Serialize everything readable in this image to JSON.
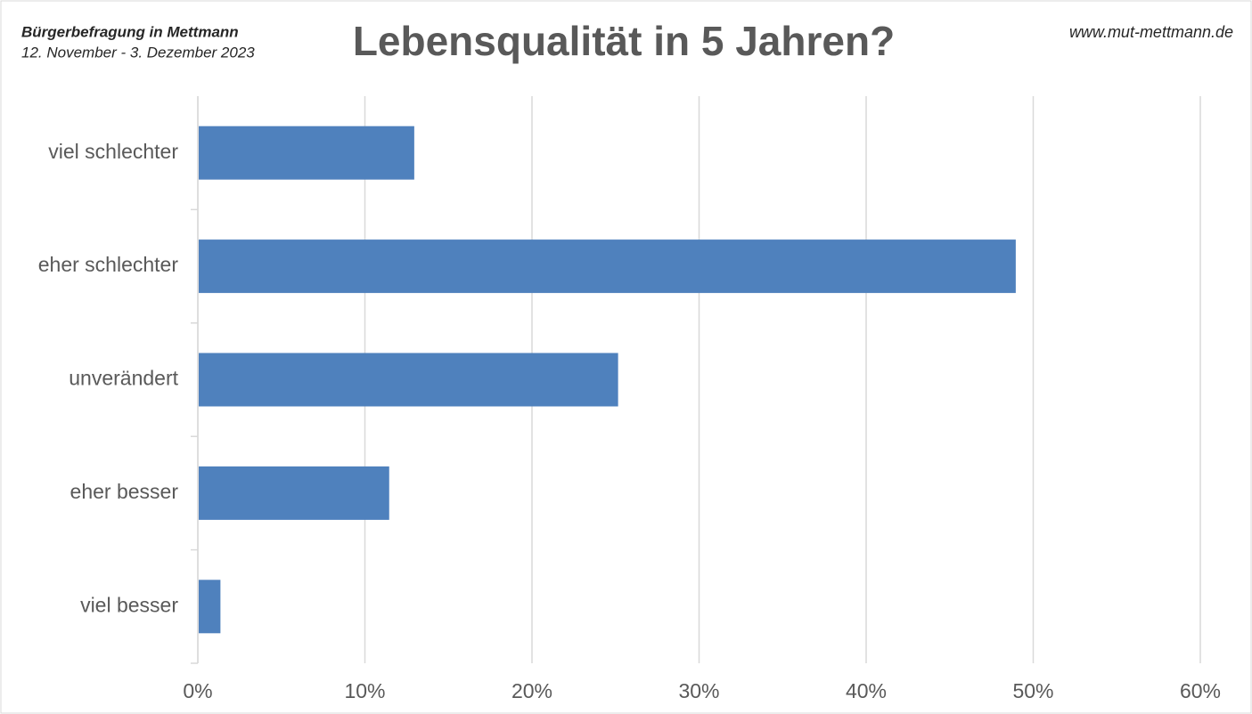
{
  "chart_data": {
    "type": "barh",
    "header_title": "Bürgerbefragung in Mettmann",
    "header_subtitle": "12. November - 3. Dezember 2023",
    "title": "Lebensqualität in 5 Jahren?",
    "source": "www.mut-mettmann.de",
    "categories": [
      "viel schlechter",
      "eher schlechter",
      "unverändert",
      "eher besser",
      "viel besser"
    ],
    "values": [
      12.9,
      48.9,
      25.1,
      11.4,
      1.3
    ],
    "color": "#4f81bd",
    "xlim": [
      0,
      60
    ],
    "xticks": [
      {
        "value": 0,
        "label": "0%"
      },
      {
        "value": 10,
        "label": "10%"
      },
      {
        "value": 20,
        "label": "20%"
      },
      {
        "value": 30,
        "label": "30%"
      },
      {
        "value": 40,
        "label": "40%"
      },
      {
        "value": 50,
        "label": "50%"
      },
      {
        "value": 60,
        "label": "60%"
      }
    ],
    "grid": true
  }
}
